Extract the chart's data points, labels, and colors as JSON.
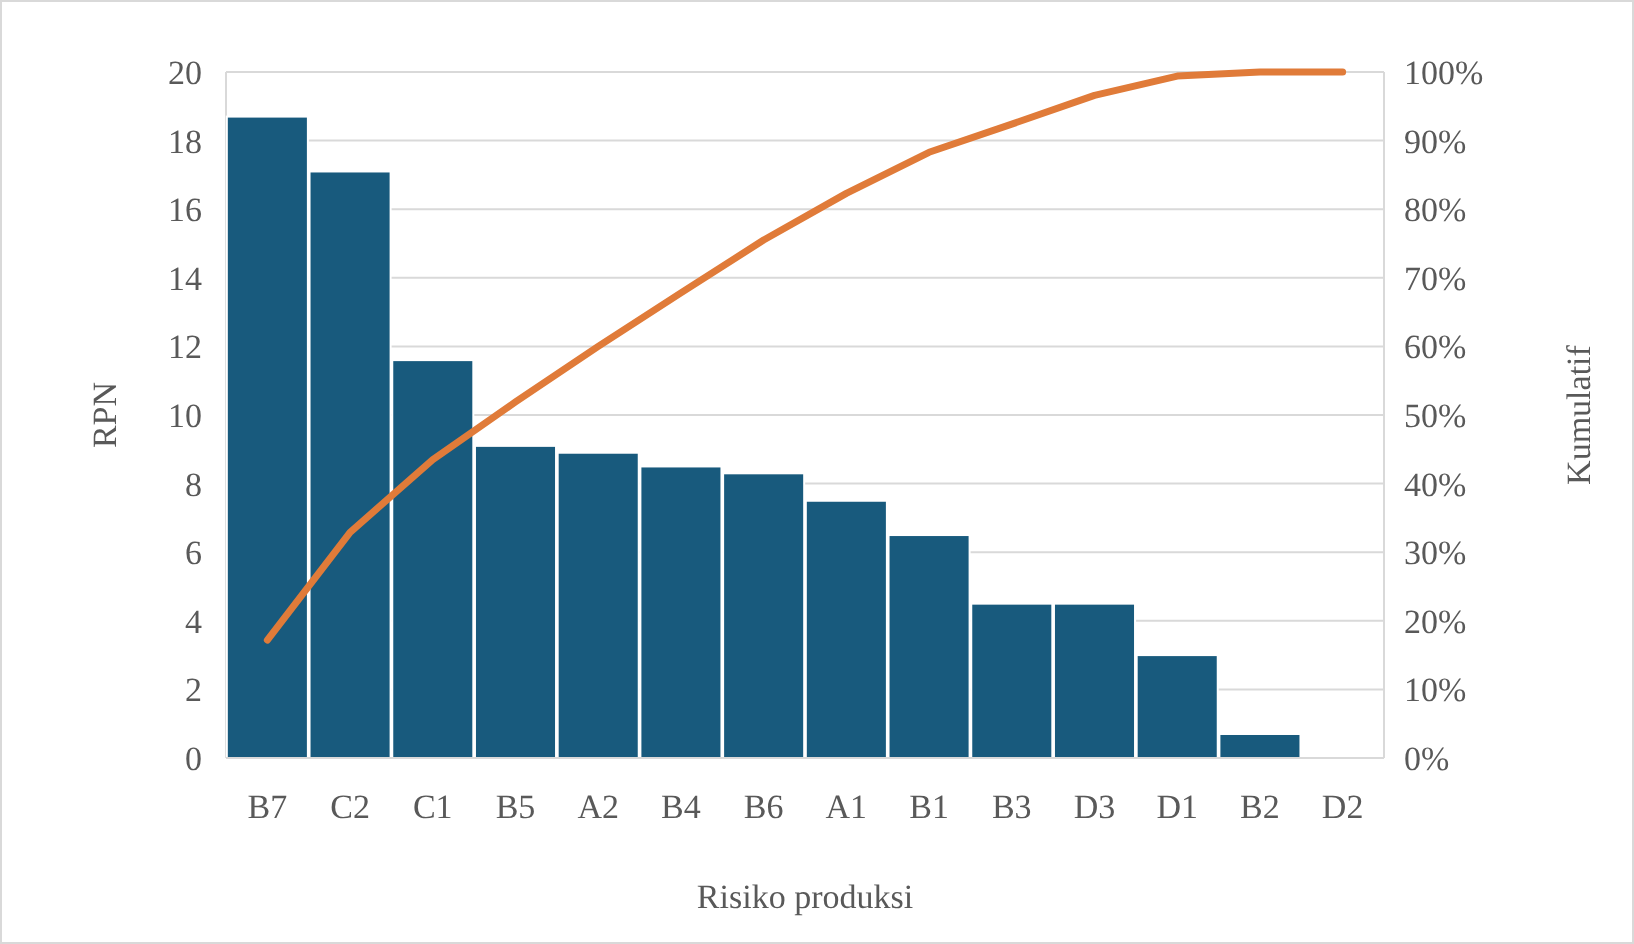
{
  "chart_data": {
    "type": "bar",
    "xlabel": "Risiko produksi",
    "ylabel": "RPN",
    "y2label": "Kumulatif",
    "categories": [
      "B7",
      "C2",
      "C1",
      "B5",
      "A2",
      "B4",
      "B6",
      "A1",
      "B1",
      "B3",
      "D3",
      "D1",
      "B2",
      "D2"
    ],
    "series": [
      {
        "color": "#185a7d",
        "values": [
          18.7,
          17.1,
          11.6,
          9.1,
          8.9,
          8.5,
          8.3,
          7.5,
          6.5,
          4.5,
          4.5,
          3.0,
          0.7,
          0
        ]
      },
      {
        "type": "line",
        "axis": "y2",
        "color": "#e07b39",
        "values": [
          17.2,
          32.9,
          43.5,
          51.9,
          60.0,
          67.8,
          75.5,
          82.3,
          88.3,
          92.4,
          96.6,
          99.4,
          100,
          100
        ]
      }
    ],
    "ylim": [
      0,
      20
    ],
    "yticks": [
      0,
      2,
      4,
      6,
      8,
      10,
      12,
      14,
      16,
      18,
      20
    ],
    "y2lim": [
      0,
      100
    ],
    "y2ticks": [
      {
        "value": 0,
        "label": "0%"
      },
      {
        "value": 10,
        "label": "10%"
      },
      {
        "value": 20,
        "label": "20%"
      },
      {
        "value": 30,
        "label": "30%"
      },
      {
        "value": 40,
        "label": "40%"
      },
      {
        "value": 50,
        "label": "50%"
      },
      {
        "value": 60,
        "label": "60%"
      },
      {
        "value": 70,
        "label": "70%"
      },
      {
        "value": 80,
        "label": "80%"
      },
      {
        "value": 90,
        "label": "90%"
      },
      {
        "value": 100,
        "label": "100%"
      }
    ],
    "grid": "y",
    "marker": "none",
    "line_style": "solid"
  }
}
